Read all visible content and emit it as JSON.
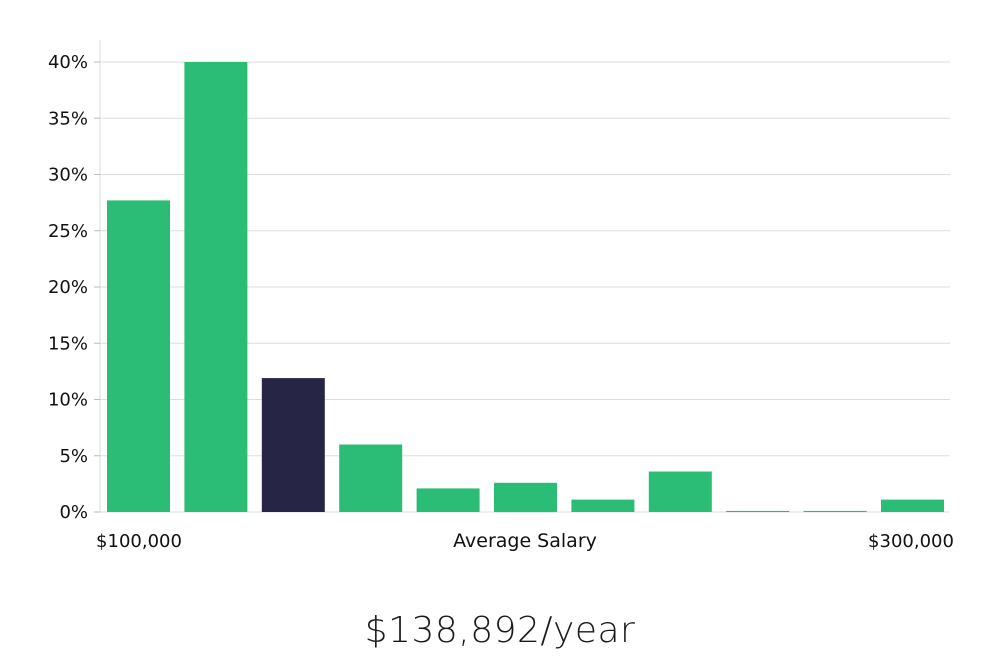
{
  "chart_data": {
    "type": "bar",
    "xlabel": "Average Salary",
    "x_start_label": "$100,000",
    "x_end_label": "$300,000",
    "ylim": [
      0,
      40
    ],
    "yticks": [
      "0%",
      "5%",
      "10%",
      "15%",
      "20%",
      "25%",
      "30%",
      "35%",
      "40%"
    ],
    "grid": true,
    "values": [
      27.7,
      40.0,
      11.9,
      6.0,
      2.1,
      2.6,
      1.1,
      3.6,
      0.1,
      0.1,
      1.1
    ],
    "highlight_index": 2,
    "colors": {
      "bar": "#2bbd76",
      "highlight": "#272546",
      "grid": "#dddddd"
    }
  },
  "salary_total": "$138,892/year"
}
